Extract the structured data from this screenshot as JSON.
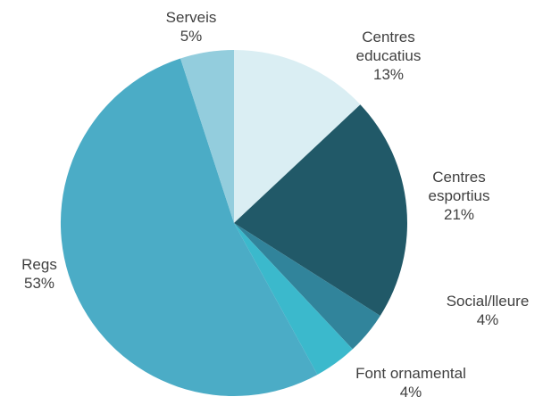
{
  "chart_data": {
    "type": "pie",
    "title": "",
    "slices": [
      {
        "label": [
          "Centres",
          "educatius"
        ],
        "percent_label": "13%",
        "value": 13,
        "color": "#DAEEF3"
      },
      {
        "label": [
          "Centres",
          "esportius"
        ],
        "percent_label": "21%",
        "value": 21,
        "color": "#215968"
      },
      {
        "label": [
          "Social/lleure"
        ],
        "percent_label": "4%",
        "value": 4,
        "color": "#31849B"
      },
      {
        "label": [
          "Font ornamental"
        ],
        "percent_label": "4%",
        "value": 4,
        "color": "#3BB9CC"
      },
      {
        "label": [
          "Regs"
        ],
        "percent_label": "53%",
        "value": 53,
        "color": "#4BACC6"
      },
      {
        "label": [
          "Serveis"
        ],
        "percent_label": "5%",
        "value": 5,
        "color": "#93CDDD"
      }
    ]
  }
}
